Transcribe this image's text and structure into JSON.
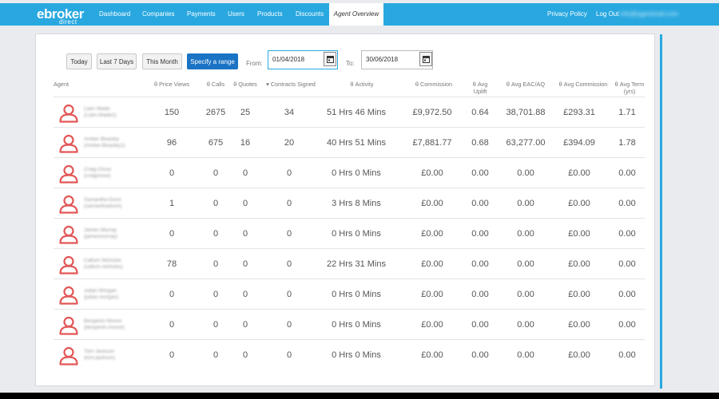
{
  "logo": {
    "main": "ebroker",
    "sub": "direct"
  },
  "nav": {
    "items": [
      {
        "label": "Dashboard"
      },
      {
        "label": "Companies"
      },
      {
        "label": "Payments"
      },
      {
        "label": "Users"
      },
      {
        "label": "Products"
      },
      {
        "label": "Discounts"
      },
      {
        "label": "Agent Overview",
        "active": true
      }
    ],
    "privacy": "Privacy Policy",
    "logout": "Log Out",
    "user_email": "info@agentmail.com"
  },
  "filters": {
    "today": "Today",
    "last7": "Last 7 Days",
    "month": "This Month",
    "range": "Specify a range",
    "from_label": "From:",
    "from_value": "01/04/2018",
    "to_label": "To:",
    "to_value": "30/06/2018"
  },
  "table": {
    "headers": {
      "agent": "Agent",
      "price_views": "θ Price Views",
      "calls": "θ Calls",
      "quotes": "θ Quotes",
      "contracts": "▾ Contracts Signed",
      "activity": "θ Activity",
      "commission": "θ Commission",
      "avg_uplift": "θ Avg Uplift",
      "avg_eac": "θ Avg EAC/AQ",
      "avg_commission": "θ Avg Commission",
      "avg_term": "θ Avg Term (yrs)"
    },
    "rows": [
      {
        "name": "Liam Wade",
        "user": "(Liam.Wade2)",
        "price_views": "150",
        "calls": "2675",
        "quotes": "25",
        "contracts": "34",
        "activity": "51 Hrs 46 Mins",
        "commission": "£9,972.50",
        "avg_uplift": "0.64",
        "avg_eac": "38,701.88",
        "avg_commission": "£293.31",
        "avg_term": "1.71"
      },
      {
        "name": "Amber Beasley",
        "user": "(Amber.Beasley1)",
        "price_views": "96",
        "calls": "675",
        "quotes": "16",
        "contracts": "20",
        "activity": "40 Hrs 51 Mins",
        "commission": "£7,881.77",
        "avg_uplift": "0.68",
        "avg_eac": "63,277.00",
        "avg_commission": "£394.09",
        "avg_term": "1.78"
      },
      {
        "name": "Craig Close",
        "user": "(craigclose)",
        "price_views": "0",
        "calls": "0",
        "quotes": "0",
        "contracts": "0",
        "activity": "0 Hrs 0 Mins",
        "commission": "£0.00",
        "avg_uplift": "0.00",
        "avg_eac": "0.00",
        "avg_commission": "£0.00",
        "avg_term": "0.00"
      },
      {
        "name": "Samantha Dunn",
        "user": "(samanthadunn)",
        "price_views": "1",
        "calls": "0",
        "quotes": "0",
        "contracts": "0",
        "activity": "3 Hrs 8 Mins",
        "commission": "£0.00",
        "avg_uplift": "0.00",
        "avg_eac": "0.00",
        "avg_commission": "£0.00",
        "avg_term": "0.00"
      },
      {
        "name": "James Murray",
        "user": "(jamesmurray)",
        "price_views": "0",
        "calls": "0",
        "quotes": "0",
        "contracts": "0",
        "activity": "0 Hrs 0 Mins",
        "commission": "£0.00",
        "avg_uplift": "0.00",
        "avg_eac": "0.00",
        "avg_commission": "£0.00",
        "avg_term": "0.00"
      },
      {
        "name": "Callum Nicholas",
        "user": "(callum.nicholas)",
        "price_views": "78",
        "calls": "0",
        "quotes": "0",
        "contracts": "0",
        "activity": "22 Hrs 31 Mins",
        "commission": "£0.00",
        "avg_uplift": "0.00",
        "avg_eac": "0.00",
        "avg_commission": "£0.00",
        "avg_term": "0.00"
      },
      {
        "name": "Julian Morgan",
        "user": "(julian.morgan)",
        "price_views": "0",
        "calls": "0",
        "quotes": "0",
        "contracts": "0",
        "activity": "0 Hrs 0 Mins",
        "commission": "£0.00",
        "avg_uplift": "0.00",
        "avg_eac": "0.00",
        "avg_commission": "£0.00",
        "avg_term": "0.00"
      },
      {
        "name": "Benjamin Moore",
        "user": "(benjamin.moore)",
        "price_views": "0",
        "calls": "0",
        "quotes": "0",
        "contracts": "0",
        "activity": "0 Hrs 0 Mins",
        "commission": "£0.00",
        "avg_uplift": "0.00",
        "avg_eac": "0.00",
        "avg_commission": "£0.00",
        "avg_term": "0.00"
      },
      {
        "name": "Tom Jackson",
        "user": "(tom.jackson)",
        "price_views": "0",
        "calls": "0",
        "quotes": "0",
        "contracts": "0",
        "activity": "0 Hrs 0 Mins",
        "commission": "£0.00",
        "avg_uplift": "0.00",
        "avg_eac": "0.00",
        "avg_commission": "£0.00",
        "avg_term": "0.00"
      }
    ]
  },
  "icons": {
    "avatar": "user-icon",
    "calendar": "calendar-icon"
  },
  "colors": {
    "brand": "#29a8e0",
    "primary_button": "#1a73c4",
    "avatar": "#e35656"
  }
}
